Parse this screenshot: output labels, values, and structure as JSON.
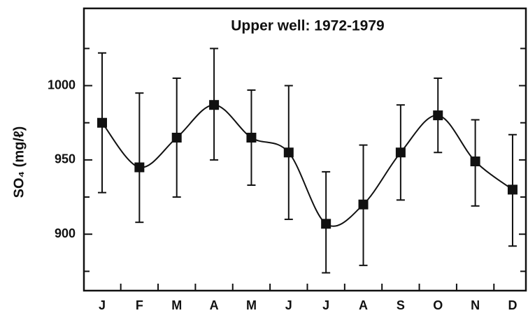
{
  "chart_data": {
    "type": "line",
    "title": "Upper well:  1972-1979",
    "ylabel": "SO₄ (mg/ℓ)",
    "categories": [
      "J",
      "F",
      "M",
      "A",
      "M",
      "J",
      "J",
      "A",
      "S",
      "O",
      "N",
      "D"
    ],
    "values": [
      975,
      945,
      965,
      987,
      965,
      955,
      907,
      920,
      955,
      980,
      949,
      930
    ],
    "high": [
      1022,
      995,
      1005,
      1025,
      997,
      1000,
      942,
      960,
      987,
      1005,
      977,
      967
    ],
    "low": [
      928,
      908,
      925,
      950,
      933,
      910,
      874,
      879,
      923,
      955,
      919,
      892
    ],
    "color": "#111111",
    "ylim": [
      862,
      1052
    ],
    "yticks": [
      900,
      950,
      1000
    ],
    "yticks_minor": [
      875,
      925,
      975,
      1025
    ]
  }
}
